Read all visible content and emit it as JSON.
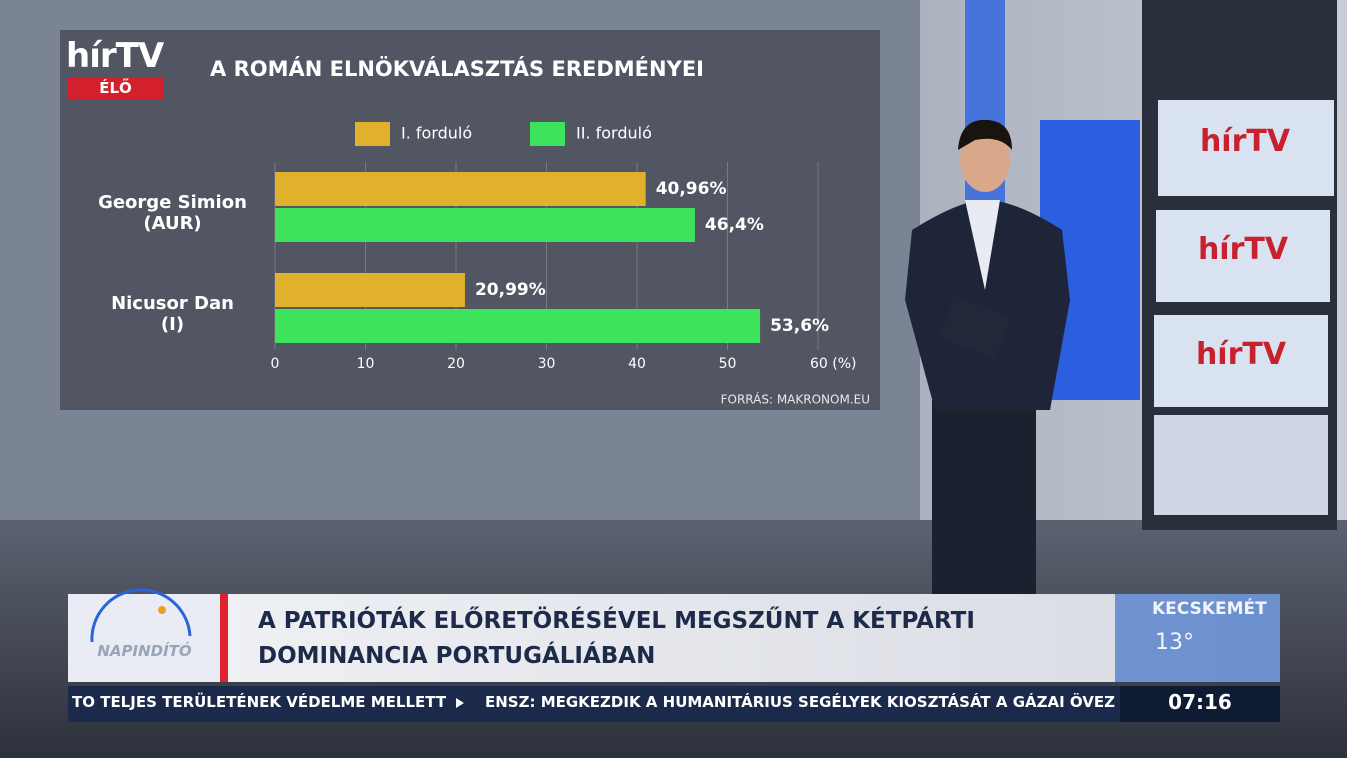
{
  "logo": {
    "brand": "hírTV",
    "live": "ÉLŐ"
  },
  "chart_data": {
    "type": "bar",
    "orientation": "horizontal",
    "title": "A ROMÁN ELNÖKVÁLASZTÁS EREDMÉNYEI",
    "categories": [
      "George Simion\n(AUR)",
      "Nicusor Dan\n(I)"
    ],
    "series": [
      {
        "name": "I. forduló",
        "color": "#e1b12b",
        "values": [
          40.96,
          20.99
        ],
        "value_labels": [
          "40,96%",
          "20,99%"
        ]
      },
      {
        "name": "II. forduló",
        "color": "#3ee35c",
        "values": [
          46.4,
          53.6
        ],
        "value_labels": [
          "46,4%",
          "53,6%"
        ]
      }
    ],
    "xlim": [
      0,
      60
    ],
    "xticks": [
      0,
      10,
      20,
      30,
      40,
      50,
      {
        "value": 60,
        "label": "60 (%)"
      }
    ],
    "grid": true,
    "source": "FORRÁS: MAKRONOM.EU"
  },
  "screens": [
    "hírTV",
    "hírTV",
    "hírTV"
  ],
  "lower_third": {
    "show": "NAPINDÍTÓ",
    "headline": [
      "A PATRIÓTÁK ELŐRETÖRÉSÉVEL MEGSZŰNT A KÉTPÁRTI",
      "DOMINANCIA PORTUGÁLIÁBAN"
    ],
    "weather": {
      "city": "KECSKEMÉT",
      "temperature": "13°"
    }
  },
  "ticker": {
    "items": [
      "TO TELJES TERÜLETÉNEK VÉDELME MELLETT",
      "ENSZ: MEGKEZDIK A HUMANITÁRIUS SEGÉLYEK KIOSZTÁSÁT A GÁZAI ÖVEZETE"
    ],
    "time": "07:16"
  }
}
